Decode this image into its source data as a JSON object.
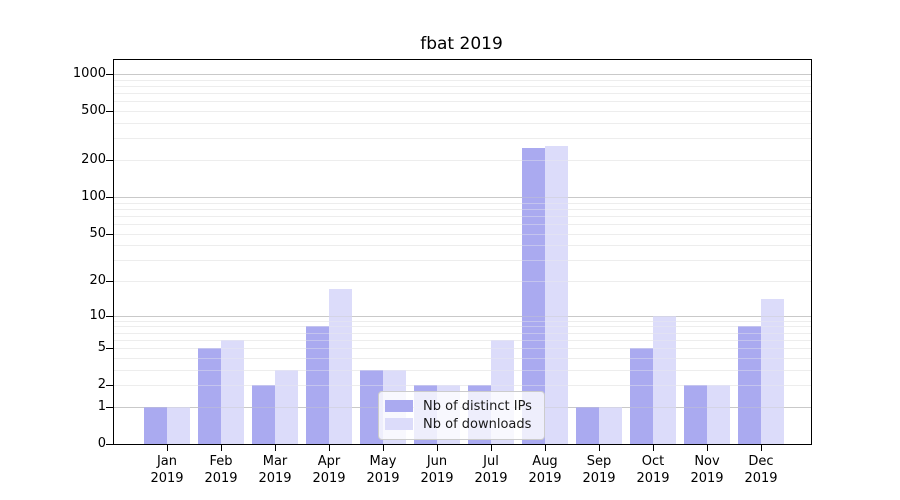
{
  "chart_data": {
    "type": "bar",
    "title": "fbat 2019",
    "year": "2019",
    "months": [
      "Jan",
      "Feb",
      "Mar",
      "Apr",
      "May",
      "Jun",
      "Jul",
      "Aug",
      "Sep",
      "Oct",
      "Nov",
      "Dec"
    ],
    "series": [
      {
        "name": "Nb of distinct IPs",
        "color": "#aaaaf0",
        "values": [
          1,
          5,
          2,
          8,
          3,
          2,
          2,
          250,
          1,
          5,
          2,
          8
        ]
      },
      {
        "name": "Nb of downloads",
        "color": "#dcdcfa",
        "values": [
          1,
          6,
          3,
          17,
          3,
          2,
          6,
          260,
          1,
          10,
          2,
          14
        ]
      }
    ],
    "xlabel": "",
    "ylabel": "",
    "y_scale": "log1p",
    "ylim": [
      0,
      1300
    ],
    "y_ticks": [
      0,
      1,
      2,
      5,
      10,
      20,
      50,
      100,
      200,
      500,
      1000
    ],
    "y_major_gridlines": [
      1,
      10,
      100,
      1000
    ],
    "y_minor_gridlines": [
      2,
      3,
      4,
      5,
      6,
      7,
      8,
      9,
      20,
      30,
      40,
      50,
      60,
      70,
      80,
      90,
      200,
      300,
      400,
      500,
      600,
      700,
      800,
      900
    ],
    "grid": "on",
    "legend_position": "inside lower-center",
    "colors": {
      "major_grid": "#c9c9c9",
      "minor_grid": "#ededed",
      "spine": "#000000",
      "background": "#ffffff"
    }
  }
}
